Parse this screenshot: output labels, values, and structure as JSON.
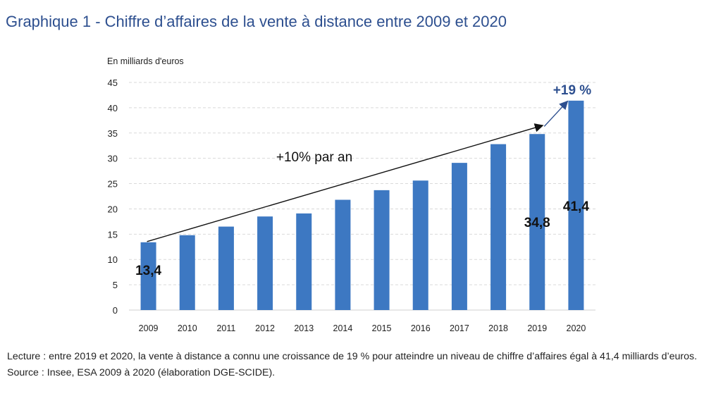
{
  "title": "Graphique 1 - Chiffre d’affaires de la vente à distance entre 2009 et 2020",
  "reading_note": "Lecture : entre 2019 et 2020, la vente à distance a connu une croissance de 19 % pour atteindre un niveau de chiffre d’affaires égal à 41,4 milliards d’euros.",
  "source": "Source : Insee, ESA 2009 à 2020 (élaboration DGE-SCIDE).",
  "colors": {
    "bar": "#3d78c2",
    "title": "#2d4f8f",
    "growth_arrow": "#2d4f8f"
  },
  "chart_data": {
    "type": "bar",
    "unit_label": "En milliards d'euros",
    "categories": [
      "2009",
      "2010",
      "2011",
      "2012",
      "2013",
      "2014",
      "2015",
      "2016",
      "2017",
      "2018",
      "2019",
      "2020"
    ],
    "values": [
      13.4,
      14.8,
      16.5,
      18.5,
      19.1,
      21.8,
      23.7,
      25.6,
      29.1,
      32.8,
      34.8,
      41.4
    ],
    "ylim": [
      0,
      45
    ],
    "yticks": [
      0,
      5,
      10,
      15,
      20,
      25,
      30,
      35,
      40,
      45
    ],
    "grid": true,
    "data_labels": [
      {
        "category": "2009",
        "text": "13,4"
      },
      {
        "category": "2019",
        "text": "34,8"
      },
      {
        "category": "2020",
        "text": "41,4"
      }
    ],
    "annotations": {
      "trend_text": "+10% par an",
      "growth_text": "+19 %"
    }
  }
}
